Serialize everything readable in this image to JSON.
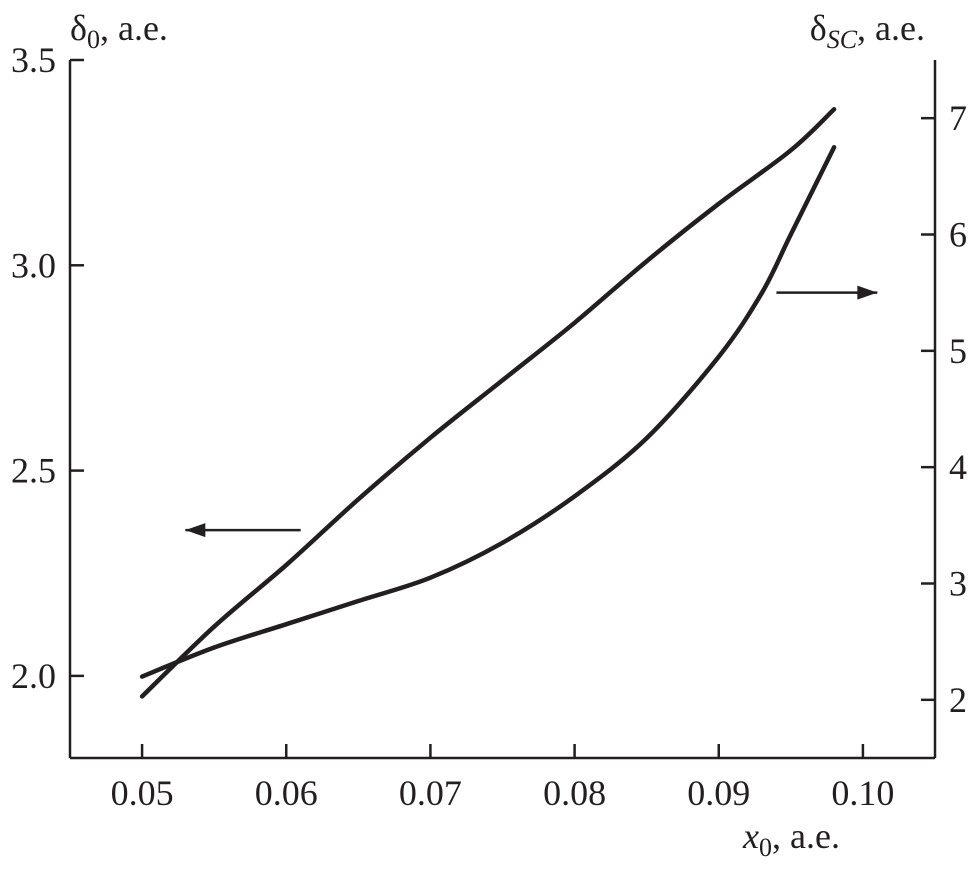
{
  "chart_data": {
    "type": "line",
    "xlabel": {
      "symbol": "x",
      "sub": "0",
      "suffix": ", а.е."
    },
    "ylabel_left": {
      "symbol": "δ",
      "sub": "0",
      "suffix": ", а.е."
    },
    "ylabel_right": {
      "symbol": "δ",
      "sub": "SC",
      "suffix": ", а.е."
    },
    "xlim": [
      0.045,
      0.105
    ],
    "ylim_left": [
      1.8,
      3.5
    ],
    "ylim_right": [
      1.5,
      7.5
    ],
    "x_ticks": [
      0.05,
      0.06,
      0.07,
      0.08,
      0.09,
      0.1
    ],
    "x_tick_labels": [
      "0.05",
      "0.06",
      "0.07",
      "0.08",
      "0.09",
      "0.10"
    ],
    "y_left_ticks": [
      2.0,
      2.5,
      3.0,
      3.5
    ],
    "y_left_tick_labels": [
      "2.0",
      "2.5",
      "3.0",
      "3.5"
    ],
    "y_right_ticks": [
      2,
      3,
      4,
      5,
      6,
      7
    ],
    "y_right_tick_labels": [
      "2",
      "3",
      "4",
      "5",
      "6",
      "7"
    ],
    "grid": false,
    "series": [
      {
        "axis": "left",
        "arrow": "left",
        "x": [
          0.05,
          0.055,
          0.06,
          0.065,
          0.07,
          0.075,
          0.08,
          0.085,
          0.09,
          0.095,
          0.098
        ],
        "values": [
          1.95,
          2.12,
          2.27,
          2.43,
          2.58,
          2.72,
          2.86,
          3.01,
          3.15,
          3.28,
          3.38
        ]
      },
      {
        "axis": "right",
        "arrow": "right",
        "x": [
          0.05,
          0.055,
          0.06,
          0.065,
          0.07,
          0.075,
          0.08,
          0.085,
          0.09,
          0.093,
          0.095,
          0.098
        ],
        "values": [
          2.2,
          2.45,
          2.65,
          2.85,
          3.05,
          3.35,
          3.75,
          4.25,
          4.95,
          5.5,
          6.0,
          6.75
        ]
      }
    ]
  }
}
